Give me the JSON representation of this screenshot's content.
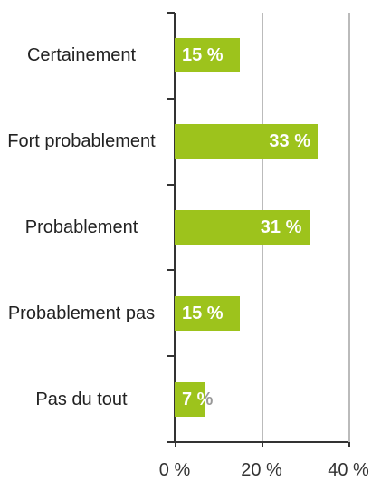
{
  "chart_data": {
    "type": "barh",
    "categories": [
      "Certainement",
      "Fort probablement",
      "Probablement",
      "Probablement pas",
      "Pas du tout"
    ],
    "values": [
      15,
      33,
      31,
      15,
      7
    ],
    "value_labels": [
      "15 %",
      "33 %",
      "31 %",
      "15 %",
      "7 %"
    ],
    "color": "#9dc31c",
    "xlim": [
      0,
      40
    ],
    "xticks": [
      {
        "value": 0,
        "label": "0 %"
      },
      {
        "value": 20,
        "label": "20 %"
      },
      {
        "value": 40,
        "label": "40 %"
      }
    ],
    "grid": true
  }
}
